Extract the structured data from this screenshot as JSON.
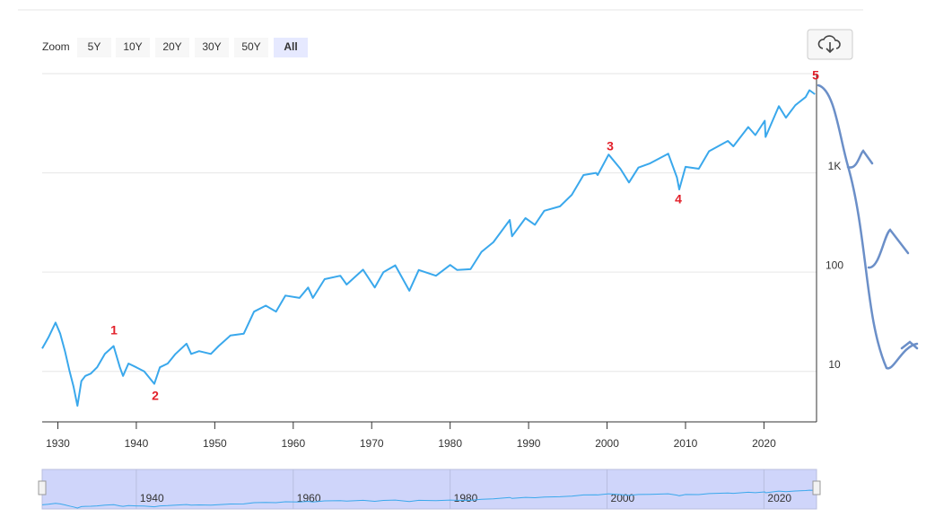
{
  "zoom": {
    "label": "Zoom",
    "buttons": [
      "5Y",
      "10Y",
      "20Y",
      "30Y",
      "50Y",
      "All"
    ],
    "selected": 5
  },
  "chart_data": {
    "type": "line",
    "log_y": true,
    "color": "#3aa8ec",
    "grid": true,
    "x": [
      1928,
      1928.8,
      1929.7,
      1930.3,
      1930.9,
      1931.5,
      1932.0,
      1932.5,
      1933.0,
      1933.5,
      1934.2,
      1935.0,
      1936.0,
      1937.1,
      1937.9,
      1938.3,
      1939.0,
      1940.0,
      1941.0,
      1942.3,
      1943.0,
      1944.0,
      1945.0,
      1946.4,
      1947.0,
      1948.0,
      1949.5,
      1950.5,
      1952.0,
      1953.7,
      1955.0,
      1956.5,
      1957.8,
      1959.0,
      1960.8,
      1961.9,
      1962.5,
      1964.0,
      1966.0,
      1966.8,
      1968.9,
      1970.4,
      1971.5,
      1973.0,
      1974.8,
      1976.0,
      1978.2,
      1980.0,
      1980.9,
      1982.6,
      1984.0,
      1985.5,
      1987.6,
      1987.9,
      1989.6,
      1990.8,
      1992.0,
      1994.0,
      1995.5,
      1997.0,
      1998.6,
      1998.8,
      2000.2,
      2001.7,
      2002.8,
      2004.0,
      2005.5,
      2007.8,
      2008.9,
      2009.2,
      2010.0,
      2011.7,
      2013.0,
      2015.4,
      2016.1,
      2018.0,
      2018.9,
      2020.1,
      2020.2,
      2021.9,
      2022.8,
      2024.0,
      2025.3,
      2025.8,
      2026.5
    ],
    "values": [
      17,
      22,
      31,
      24,
      16,
      10,
      7,
      4.5,
      8,
      9,
      9.5,
      11,
      15,
      18,
      11,
      9,
      12,
      11,
      10,
      7.5,
      11,
      12,
      15,
      19,
      15,
      16,
      15,
      18,
      23,
      24,
      40,
      46,
      40,
      58,
      55,
      70,
      55,
      85,
      92,
      75,
      106,
      70,
      100,
      117,
      65,
      105,
      92,
      118,
      105,
      107,
      160,
      200,
      335,
      230,
      350,
      300,
      415,
      460,
      600,
      950,
      1000,
      950,
      1530,
      1100,
      800,
      1130,
      1250,
      1560,
      900,
      680,
      1150,
      1100,
      1650,
      2100,
      1850,
      2900,
      2400,
      3350,
      2300,
      4700,
      3600,
      4800,
      5800,
      6800,
      6200
    ],
    "xlim": [
      1928,
      2026.7
    ],
    "xticks": [
      1930,
      1940,
      1950,
      1960,
      1970,
      1980,
      1990,
      2000,
      2010,
      2020
    ],
    "ylim": [
      3.1,
      10000
    ],
    "yticks": [
      10,
      100,
      {
        "value": 1000,
        "label": "1K"
      }
    ],
    "annotations": [
      "1",
      "2",
      "3",
      "4",
      "5"
    ]
  },
  "navigator": {
    "xticks": [
      1940,
      1960,
      1980,
      2000,
      2020
    ]
  }
}
